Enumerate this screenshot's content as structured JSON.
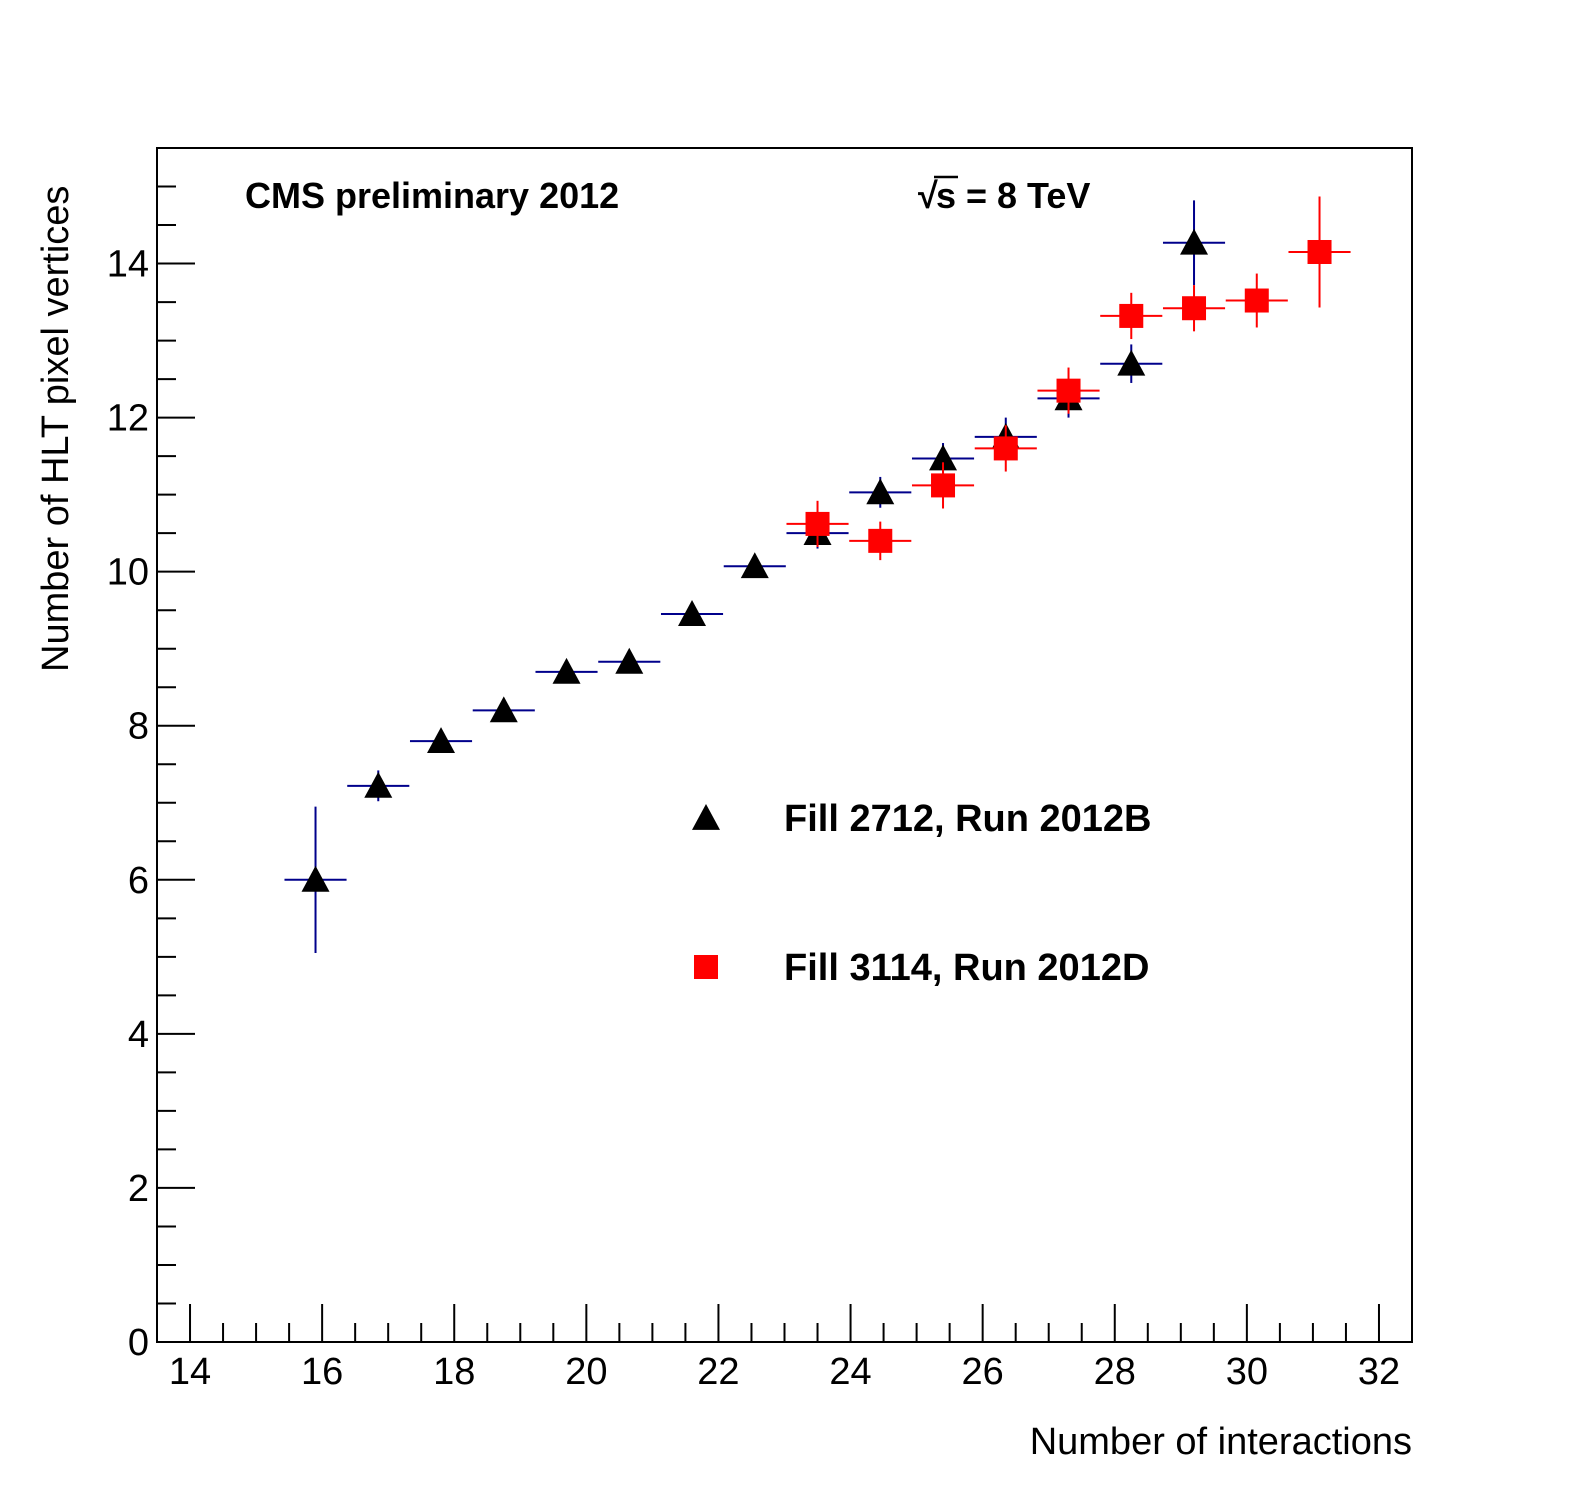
{
  "chart_data": {
    "type": "scatter",
    "title": "",
    "xlabel": "Number of interactions",
    "ylabel": "Number of HLT pixel vertices",
    "xlim": [
      13.5,
      32.5
    ],
    "ylim": [
      0,
      15.5
    ],
    "x_ticks": [
      14,
      16,
      18,
      20,
      22,
      24,
      26,
      28,
      30,
      32
    ],
    "y_ticks": [
      0,
      2,
      4,
      6,
      8,
      10,
      12,
      14
    ],
    "x_tick_labels": [
      "14",
      "16",
      "18",
      "20",
      "22",
      "24",
      "26",
      "28",
      "30",
      "32"
    ],
    "y_tick_labels": [
      "0",
      "2",
      "4",
      "6",
      "8",
      "10",
      "12",
      "14"
    ],
    "grid": false,
    "annotations": {
      "experiment": "CMS preliminary 2012",
      "energy_sqrt": "√",
      "energy_s": "s",
      "energy_rest": " = 8 TeV"
    },
    "legend_position": "center",
    "series": [
      {
        "name": "Fill 2712, Run 2012B",
        "marker": "triangle",
        "marker_color": "#000000",
        "error_color": "#00008b",
        "points": [
          {
            "x": 15.9,
            "y": 6.0,
            "xerr": 0.47,
            "yerr": 0.95
          },
          {
            "x": 16.85,
            "y": 7.22,
            "xerr": 0.47,
            "yerr": 0.2
          },
          {
            "x": 17.8,
            "y": 7.8,
            "xerr": 0.47,
            "yerr": 0.1
          },
          {
            "x": 18.75,
            "y": 8.2,
            "xerr": 0.47,
            "yerr": 0.1
          },
          {
            "x": 19.7,
            "y": 8.7,
            "xerr": 0.47,
            "yerr": 0.1
          },
          {
            "x": 20.65,
            "y": 8.83,
            "xerr": 0.47,
            "yerr": 0.1
          },
          {
            "x": 21.6,
            "y": 9.45,
            "xerr": 0.47,
            "yerr": 0.12
          },
          {
            "x": 22.55,
            "y": 10.07,
            "xerr": 0.47,
            "yerr": 0.15
          },
          {
            "x": 23.5,
            "y": 10.5,
            "xerr": 0.47,
            "yerr": 0.2
          },
          {
            "x": 24.45,
            "y": 11.03,
            "xerr": 0.47,
            "yerr": 0.2
          },
          {
            "x": 25.4,
            "y": 11.47,
            "xerr": 0.47,
            "yerr": 0.2
          },
          {
            "x": 26.35,
            "y": 11.75,
            "xerr": 0.47,
            "yerr": 0.25
          },
          {
            "x": 27.3,
            "y": 12.25,
            "xerr": 0.47,
            "yerr": 0.25
          },
          {
            "x": 28.25,
            "y": 12.7,
            "xerr": 0.47,
            "yerr": 0.25
          },
          {
            "x": 29.2,
            "y": 14.27,
            "xerr": 0.47,
            "yerr": 0.55
          }
        ]
      },
      {
        "name": "Fill 3114, Run 2012D",
        "marker": "square",
        "marker_color": "#ff0000",
        "error_color": "#ff0000",
        "points": [
          {
            "x": 23.5,
            "y": 10.62,
            "xerr": 0.47,
            "yerr": 0.3
          },
          {
            "x": 24.45,
            "y": 10.4,
            "xerr": 0.47,
            "yerr": 0.25
          },
          {
            "x": 25.4,
            "y": 11.12,
            "xerr": 0.47,
            "yerr": 0.3
          },
          {
            "x": 26.35,
            "y": 11.6,
            "xerr": 0.47,
            "yerr": 0.3
          },
          {
            "x": 27.3,
            "y": 12.35,
            "xerr": 0.47,
            "yerr": 0.3
          },
          {
            "x": 28.25,
            "y": 13.32,
            "xerr": 0.47,
            "yerr": 0.3
          },
          {
            "x": 29.2,
            "y": 13.42,
            "xerr": 0.47,
            "yerr": 0.3
          },
          {
            "x": 30.15,
            "y": 13.52,
            "xerr": 0.47,
            "yerr": 0.35
          },
          {
            "x": 31.1,
            "y": 14.15,
            "xerr": 0.47,
            "yerr": 0.72
          }
        ]
      }
    ]
  }
}
